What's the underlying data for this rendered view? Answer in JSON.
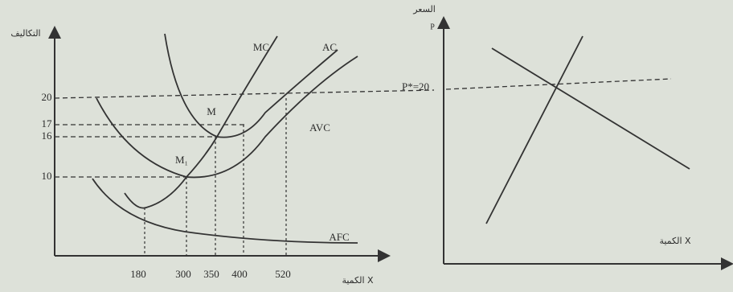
{
  "left_panel": {
    "y_axis_label": "التكاليف",
    "x_axis_label": "الكمية X",
    "curve_labels": [
      "MC",
      "AC",
      "AVC",
      "AFC"
    ],
    "points": [
      "M",
      "M₁"
    ],
    "y_ticks": [
      "20",
      "17",
      "16",
      "10"
    ],
    "x_ticks": [
      "180",
      "300",
      "350",
      "400",
      "520"
    ]
  },
  "right_panel": {
    "y_axis_label": "السعر",
    "y_axis_symbol": "P",
    "price_label": "P*=20",
    "x_axis_label": "الكمية X"
  }
}
